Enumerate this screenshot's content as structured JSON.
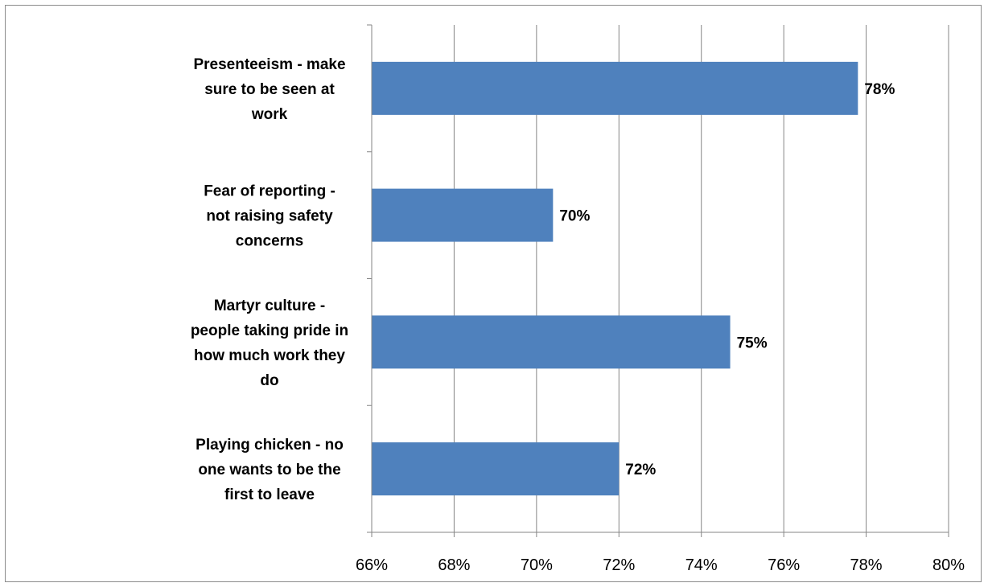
{
  "chart_data": {
    "type": "bar",
    "orientation": "horizontal",
    "categories": [
      [
        "Presenteeism - make",
        "sure to be seen at",
        "work"
      ],
      [
        "Fear of reporting -",
        "not raising safety",
        "concerns"
      ],
      [
        "Martyr culture -",
        "people taking pride in",
        "how much work they",
        "do"
      ],
      [
        "Playing chicken - no",
        "one wants to be the",
        "first to leave"
      ]
    ],
    "values": [
      77.8,
      70.4,
      74.7,
      72.0
    ],
    "data_labels": [
      "78%",
      "70%",
      "75%",
      "72%"
    ],
    "xlim": [
      66,
      80
    ],
    "xticks": [
      66,
      68,
      70,
      72,
      74,
      76,
      78,
      80
    ],
    "xtick_labels": [
      "66%",
      "68%",
      "70%",
      "72%",
      "74%",
      "76%",
      "78%",
      "80%"
    ],
    "title": "",
    "xlabel": "",
    "ylabel": "",
    "grid": "vertical",
    "legend": "none",
    "bar_color": "#4f81bd",
    "grid_color": "#868686"
  }
}
